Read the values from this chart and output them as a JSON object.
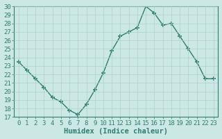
{
  "x": [
    0,
    1,
    2,
    3,
    4,
    5,
    6,
    7,
    8,
    9,
    10,
    11,
    12,
    13,
    14,
    15,
    16,
    17,
    18,
    19,
    20,
    21,
    22,
    23
  ],
  "y": [
    23.5,
    22.5,
    21.5,
    20.5,
    19.3,
    18.8,
    17.8,
    17.3,
    18.5,
    20.2,
    22.2,
    24.8,
    26.5,
    27.0,
    27.5,
    30.0,
    29.2,
    27.8,
    28.0,
    26.5,
    25.0,
    23.5,
    21.5,
    21.5
  ],
  "xlabel": "Humidex (Indice chaleur)",
  "ylim": [
    17,
    30
  ],
  "xlim": [
    -0.5,
    23.5
  ],
  "yticks": [
    17,
    18,
    19,
    20,
    21,
    22,
    23,
    24,
    25,
    26,
    27,
    28,
    29,
    30
  ],
  "xticks": [
    0,
    1,
    2,
    3,
    4,
    5,
    6,
    7,
    8,
    9,
    10,
    11,
    12,
    13,
    14,
    15,
    16,
    17,
    18,
    19,
    20,
    21,
    22,
    23
  ],
  "line_color": "#2e7d6e",
  "marker": "+",
  "bg_color": "#cce8e4",
  "grid_color": "#aad0ca",
  "axis_color": "#2e7d6e",
  "tick_color": "#2e7d6e",
  "label_color": "#2e7d6e",
  "font_size": 6.5,
  "xlabel_font_size": 7.5
}
